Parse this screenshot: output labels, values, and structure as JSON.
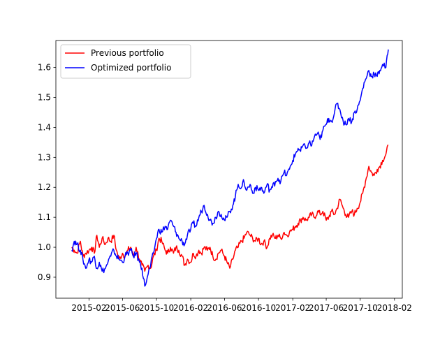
{
  "chart_data": {
    "type": "line",
    "title": "",
    "xlabel": "",
    "ylabel": "",
    "xlim": [
      "2014-10-05",
      "2018-03-01"
    ],
    "ylim": [
      0.83,
      1.69
    ],
    "x_ticks": [
      "2015-02",
      "2015-06",
      "2015-10",
      "2016-02",
      "2016-06",
      "2016-10",
      "2017-02",
      "2017-06",
      "2017-10",
      "2018-02"
    ],
    "y_ticks": [
      0.9,
      1.0,
      1.1,
      1.2,
      1.3,
      1.4,
      1.5,
      1.6
    ],
    "y_tick_labels": [
      "0.9",
      "1.0",
      "1.1",
      "1.2",
      "1.3",
      "1.4",
      "1.5",
      "1.6"
    ],
    "grid": false,
    "legend": "top-left",
    "series": [
      {
        "name": "Previous portfolio",
        "color": "#ff0000",
        "points": [
          [
            "2014-12-01",
            1.0
          ],
          [
            "2014-12-10",
            0.99
          ],
          [
            "2014-12-20",
            0.98
          ],
          [
            "2015-01-01",
            1.02
          ],
          [
            "2015-01-10",
            0.97
          ],
          [
            "2015-01-20",
            0.98
          ],
          [
            "2015-02-01",
            0.99
          ],
          [
            "2015-02-10",
            1.0
          ],
          [
            "2015-02-20",
            0.98
          ],
          [
            "2015-03-01",
            1.04
          ],
          [
            "2015-03-10",
            1.0
          ],
          [
            "2015-03-20",
            1.03
          ],
          [
            "2015-04-01",
            1.01
          ],
          [
            "2015-04-10",
            1.03
          ],
          [
            "2015-04-20",
            1.02
          ],
          [
            "2015-05-01",
            1.04
          ],
          [
            "2015-05-10",
            0.99
          ],
          [
            "2015-05-20",
            0.96
          ],
          [
            "2015-06-01",
            0.98
          ],
          [
            "2015-06-10",
            0.97
          ],
          [
            "2015-06-20",
            0.99
          ],
          [
            "2015-07-01",
            1.0
          ],
          [
            "2015-07-10",
            0.97
          ],
          [
            "2015-07-20",
            1.0
          ],
          [
            "2015-08-01",
            0.96
          ],
          [
            "2015-08-10",
            0.94
          ],
          [
            "2015-08-20",
            0.92
          ],
          [
            "2015-09-01",
            0.94
          ],
          [
            "2015-09-10",
            0.93
          ],
          [
            "2015-09-20",
            0.97
          ],
          [
            "2015-10-01",
            0.99
          ],
          [
            "2015-10-10",
            1.03
          ],
          [
            "2015-10-20",
            1.02
          ],
          [
            "2015-11-01",
            0.99
          ],
          [
            "2015-11-10",
            0.98
          ],
          [
            "2015-11-20",
            1.0
          ],
          [
            "2015-12-01",
            0.98
          ],
          [
            "2015-12-10",
            1.0
          ],
          [
            "2015-12-20",
            0.99
          ],
          [
            "2016-01-01",
            0.97
          ],
          [
            "2016-01-10",
            0.94
          ],
          [
            "2016-01-20",
            0.96
          ],
          [
            "2016-02-01",
            0.95
          ],
          [
            "2016-02-10",
            0.98
          ],
          [
            "2016-02-20",
            0.97
          ],
          [
            "2016-03-01",
            0.99
          ],
          [
            "2016-03-10",
            0.98
          ],
          [
            "2016-03-20",
            1.0
          ],
          [
            "2016-04-01",
            0.99
          ],
          [
            "2016-04-10",
            1.0
          ],
          [
            "2016-04-20",
            0.97
          ],
          [
            "2016-05-01",
            0.96
          ],
          [
            "2016-05-10",
            0.98
          ],
          [
            "2016-05-20",
            0.99
          ],
          [
            "2016-06-01",
            0.97
          ],
          [
            "2016-06-10",
            0.95
          ],
          [
            "2016-06-20",
            0.93
          ],
          [
            "2016-07-01",
            0.96
          ],
          [
            "2016-07-10",
            0.99
          ],
          [
            "2016-07-20",
            1.0
          ],
          [
            "2016-08-01",
            1.02
          ],
          [
            "2016-08-10",
            1.03
          ],
          [
            "2016-08-20",
            1.05
          ],
          [
            "2016-09-01",
            1.04
          ],
          [
            "2016-09-10",
            1.03
          ],
          [
            "2016-09-20",
            1.02
          ],
          [
            "2016-10-01",
            1.03
          ],
          [
            "2016-10-10",
            1.01
          ],
          [
            "2016-10-20",
            1.02
          ],
          [
            "2016-11-01",
            1.0
          ],
          [
            "2016-11-10",
            1.03
          ],
          [
            "2016-11-20",
            1.04
          ],
          [
            "2016-12-01",
            1.03
          ],
          [
            "2016-12-10",
            1.04
          ],
          [
            "2016-12-20",
            1.03
          ],
          [
            "2017-01-01",
            1.05
          ],
          [
            "2017-01-10",
            1.04
          ],
          [
            "2017-01-20",
            1.05
          ],
          [
            "2017-02-01",
            1.06
          ],
          [
            "2017-02-10",
            1.07
          ],
          [
            "2017-02-20",
            1.08
          ],
          [
            "2017-03-01",
            1.09
          ],
          [
            "2017-03-10",
            1.1
          ],
          [
            "2017-03-20",
            1.09
          ],
          [
            "2017-04-01",
            1.1
          ],
          [
            "2017-04-10",
            1.11
          ],
          [
            "2017-04-20",
            1.1
          ],
          [
            "2017-05-01",
            1.12
          ],
          [
            "2017-05-10",
            1.11
          ],
          [
            "2017-05-20",
            1.12
          ],
          [
            "2017-06-01",
            1.09
          ],
          [
            "2017-06-10",
            1.1
          ],
          [
            "2017-06-20",
            1.12
          ],
          [
            "2017-07-01",
            1.11
          ],
          [
            "2017-07-10",
            1.13
          ],
          [
            "2017-07-20",
            1.16
          ],
          [
            "2017-08-01",
            1.13
          ],
          [
            "2017-08-10",
            1.11
          ],
          [
            "2017-08-20",
            1.1
          ],
          [
            "2017-09-01",
            1.12
          ],
          [
            "2017-09-10",
            1.11
          ],
          [
            "2017-09-20",
            1.13
          ],
          [
            "2017-10-01",
            1.15
          ],
          [
            "2017-10-10",
            1.18
          ],
          [
            "2017-10-20",
            1.22
          ],
          [
            "2017-11-01",
            1.27
          ],
          [
            "2017-11-10",
            1.25
          ],
          [
            "2017-11-20",
            1.24
          ],
          [
            "2017-12-01",
            1.26
          ],
          [
            "2017-12-10",
            1.27
          ],
          [
            "2017-12-20",
            1.29
          ],
          [
            "2018-01-01",
            1.31
          ],
          [
            "2018-01-10",
            1.34
          ]
        ]
      },
      {
        "name": "Optimized portfolio",
        "color": "#0000ff",
        "points": [
          [
            "2014-12-01",
            0.99
          ],
          [
            "2014-12-10",
            1.02
          ],
          [
            "2014-12-20",
            1.01
          ],
          [
            "2015-01-01",
            0.99
          ],
          [
            "2015-01-10",
            0.96
          ],
          [
            "2015-01-20",
            0.93
          ],
          [
            "2015-02-01",
            0.96
          ],
          [
            "2015-02-10",
            0.95
          ],
          [
            "2015-02-20",
            0.97
          ],
          [
            "2015-03-01",
            0.93
          ],
          [
            "2015-03-10",
            0.95
          ],
          [
            "2015-03-20",
            0.92
          ],
          [
            "2015-04-01",
            0.93
          ],
          [
            "2015-04-10",
            0.95
          ],
          [
            "2015-04-20",
            0.97
          ],
          [
            "2015-05-01",
            0.99
          ],
          [
            "2015-05-10",
            0.97
          ],
          [
            "2015-05-20",
            0.96
          ],
          [
            "2015-06-01",
            0.95
          ],
          [
            "2015-06-10",
            0.97
          ],
          [
            "2015-06-20",
            0.98
          ],
          [
            "2015-07-01",
            0.99
          ],
          [
            "2015-07-10",
            0.97
          ],
          [
            "2015-07-20",
            0.98
          ],
          [
            "2015-08-01",
            0.95
          ],
          [
            "2015-08-10",
            0.93
          ],
          [
            "2015-08-20",
            0.87
          ],
          [
            "2015-09-01",
            0.91
          ],
          [
            "2015-09-10",
            0.94
          ],
          [
            "2015-09-20",
            0.98
          ],
          [
            "2015-10-01",
            1.03
          ],
          [
            "2015-10-10",
            1.06
          ],
          [
            "2015-10-20",
            1.05
          ],
          [
            "2015-11-01",
            1.07
          ],
          [
            "2015-11-10",
            1.06
          ],
          [
            "2015-11-20",
            1.09
          ],
          [
            "2015-12-01",
            1.07
          ],
          [
            "2015-12-10",
            1.05
          ],
          [
            "2015-12-20",
            1.03
          ],
          [
            "2016-01-01",
            1.02
          ],
          [
            "2016-01-10",
            1.01
          ],
          [
            "2016-01-20",
            1.04
          ],
          [
            "2016-02-01",
            1.06
          ],
          [
            "2016-02-10",
            1.08
          ],
          [
            "2016-02-20",
            1.07
          ],
          [
            "2016-03-01",
            1.1
          ],
          [
            "2016-03-10",
            1.12
          ],
          [
            "2016-03-20",
            1.14
          ],
          [
            "2016-04-01",
            1.11
          ],
          [
            "2016-04-10",
            1.09
          ],
          [
            "2016-04-20",
            1.08
          ],
          [
            "2016-05-01",
            1.1
          ],
          [
            "2016-05-10",
            1.12
          ],
          [
            "2016-05-20",
            1.11
          ],
          [
            "2016-06-01",
            1.09
          ],
          [
            "2016-06-10",
            1.1
          ],
          [
            "2016-06-20",
            1.12
          ],
          [
            "2016-07-01",
            1.14
          ],
          [
            "2016-07-10",
            1.17
          ],
          [
            "2016-07-20",
            1.21
          ],
          [
            "2016-08-01",
            1.2
          ],
          [
            "2016-08-10",
            1.22
          ],
          [
            "2016-08-20",
            1.19
          ],
          [
            "2016-09-01",
            1.21
          ],
          [
            "2016-09-10",
            1.18
          ],
          [
            "2016-09-20",
            1.2
          ],
          [
            "2016-10-01",
            1.19
          ],
          [
            "2016-10-10",
            1.2
          ],
          [
            "2016-10-20",
            1.18
          ],
          [
            "2016-11-01",
            1.21
          ],
          [
            "2016-11-10",
            1.19
          ],
          [
            "2016-11-20",
            1.2
          ],
          [
            "2016-12-01",
            1.22
          ],
          [
            "2016-12-10",
            1.23
          ],
          [
            "2016-12-20",
            1.22
          ],
          [
            "2017-01-01",
            1.25
          ],
          [
            "2017-01-10",
            1.24
          ],
          [
            "2017-01-20",
            1.26
          ],
          [
            "2017-02-01",
            1.29
          ],
          [
            "2017-02-10",
            1.31
          ],
          [
            "2017-02-20",
            1.33
          ],
          [
            "2017-03-01",
            1.32
          ],
          [
            "2017-03-10",
            1.34
          ],
          [
            "2017-03-20",
            1.33
          ],
          [
            "2017-04-01",
            1.35
          ],
          [
            "2017-04-10",
            1.34
          ],
          [
            "2017-04-20",
            1.37
          ],
          [
            "2017-05-01",
            1.38
          ],
          [
            "2017-05-10",
            1.36
          ],
          [
            "2017-05-20",
            1.39
          ],
          [
            "2017-06-01",
            1.41
          ],
          [
            "2017-06-10",
            1.43
          ],
          [
            "2017-06-20",
            1.42
          ],
          [
            "2017-07-01",
            1.45
          ],
          [
            "2017-07-10",
            1.48
          ],
          [
            "2017-07-20",
            1.46
          ],
          [
            "2017-08-01",
            1.42
          ],
          [
            "2017-08-10",
            1.41
          ],
          [
            "2017-08-20",
            1.43
          ],
          [
            "2017-09-01",
            1.42
          ],
          [
            "2017-09-10",
            1.45
          ],
          [
            "2017-09-20",
            1.46
          ],
          [
            "2017-10-01",
            1.49
          ],
          [
            "2017-10-10",
            1.53
          ],
          [
            "2017-10-20",
            1.56
          ],
          [
            "2017-11-01",
            1.59
          ],
          [
            "2017-11-10",
            1.57
          ],
          [
            "2017-11-20",
            1.58
          ],
          [
            "2017-12-01",
            1.57
          ],
          [
            "2017-12-10",
            1.59
          ],
          [
            "2017-12-20",
            1.61
          ],
          [
            "2018-01-01",
            1.6
          ],
          [
            "2018-01-10",
            1.66
          ]
        ]
      }
    ]
  }
}
